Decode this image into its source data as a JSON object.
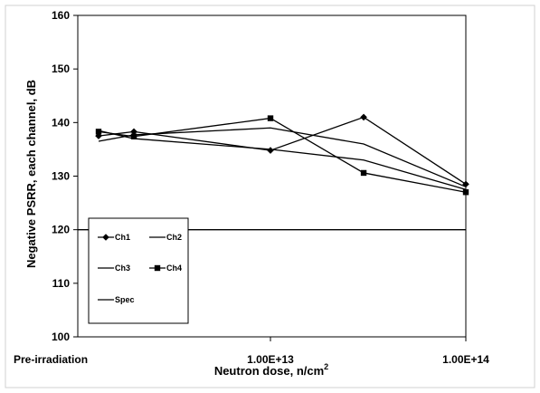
{
  "chart_data": {
    "type": "line",
    "xlabel": "Neutron dose, n/cm",
    "xlabel_sup": "2",
    "ylabel": "Negative PSRR, each channel, dB",
    "ylim": [
      100,
      160
    ],
    "yticks": [
      100,
      110,
      120,
      130,
      140,
      150,
      160
    ],
    "xticks": [
      {
        "value": "pre",
        "label": "Pre-irradiation"
      },
      {
        "value": 10000000000000.0,
        "label": "1.00E+13"
      },
      {
        "value": 100000000000000.0,
        "label": "1.00E+14"
      }
    ],
    "x_scale": "log",
    "grid": false,
    "legend_position": "bottom-left",
    "series": [
      {
        "name": "Ch1",
        "marker": "diamond",
        "x": [
          "pre",
          2000000000000.0,
          10000000000000.0,
          30000000000000.0,
          100000000000000.0
        ],
        "values": [
          137.5,
          138.3,
          134.8,
          141.0,
          128.5
        ]
      },
      {
        "name": "Ch2",
        "marker": "none",
        "x": [
          "pre",
          2000000000000.0,
          10000000000000.0,
          30000000000000.0,
          100000000000000.0
        ],
        "values": [
          136.5,
          137.7,
          139.0,
          136.0,
          128.0
        ]
      },
      {
        "name": "Ch3",
        "marker": "none",
        "x": [
          "pre",
          2000000000000.0,
          10000000000000.0,
          30000000000000.0,
          100000000000000.0
        ],
        "values": [
          138.5,
          137.0,
          135.0,
          133.0,
          127.5
        ]
      },
      {
        "name": "Ch4",
        "marker": "square",
        "x": [
          "pre",
          2000000000000.0,
          10000000000000.0,
          30000000000000.0,
          100000000000000.0
        ],
        "values": [
          138.3,
          137.4,
          140.8,
          130.6,
          127.0
        ]
      },
      {
        "name": "Spec",
        "marker": "none",
        "x": [
          "pre",
          100000000000000.0
        ],
        "values": [
          120,
          120
        ]
      }
    ]
  }
}
